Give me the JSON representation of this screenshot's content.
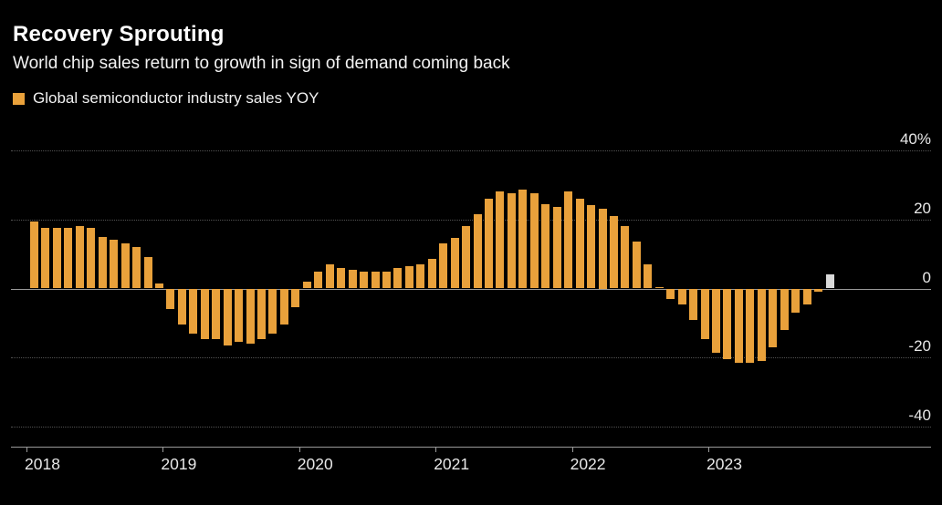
{
  "header": {
    "title": "Recovery Sprouting",
    "subtitle": "World chip sales return to growth in sign of demand coming back",
    "legend": {
      "label": "Global semiconductor industry sales YOY",
      "swatch_color": "#E9A13B"
    }
  },
  "colors": {
    "background": "#000000",
    "bar": "#E9A13B",
    "bar_highlight": "#D9D9D9",
    "grid_dotted": "#525252",
    "zero_line": "#9A9A9A",
    "axis_line": "#9A9A9A",
    "text": "#FFFFFF"
  },
  "chart_data": {
    "type": "bar",
    "title": "Recovery Sprouting",
    "subtitle": "World chip sales return to growth in sign of demand coming back",
    "series_name": "Global semiconductor industry sales YOY",
    "unit": "%",
    "frequency": "monthly",
    "x_start": "2018-01",
    "x_end": "2023-11",
    "year_labels": [
      "2018",
      "2019",
      "2020",
      "2021",
      "2022",
      "2023"
    ],
    "values": [
      19.5,
      17.5,
      17.5,
      17.5,
      18,
      17.5,
      15,
      14,
      13,
      12,
      9,
      1.5,
      -6,
      -10.5,
      -13,
      -14.5,
      -14.5,
      -16.5,
      -15.5,
      -16,
      -14.5,
      -13,
      -10.5,
      -5.5,
      2,
      5,
      7,
      6,
      5.5,
      5,
      5,
      5,
      6,
      6.5,
      7,
      8.5,
      13,
      14.5,
      18,
      21.5,
      26,
      28,
      27.5,
      28.5,
      27.5,
      24.5,
      23.5,
      28,
      26,
      24,
      23,
      21,
      18,
      13.5,
      7,
      0.5,
      -3,
      -4.5,
      -9,
      -14.5,
      -18.5,
      -20.5,
      -21.5,
      -21.5,
      -21,
      -17,
      -12,
      -7,
      -4.5,
      -1,
      4
    ],
    "highlight_last": true,
    "highlight_note": "latest month shown in gray/white",
    "y_axis_ticks": [
      {
        "value": 40,
        "label": "40%"
      },
      {
        "value": 20,
        "label": "20"
      },
      {
        "value": 0,
        "label": "0"
      },
      {
        "value": -20,
        "label": "-20"
      },
      {
        "value": -40,
        "label": "-40"
      }
    ],
    "ylim": [
      46,
      -46
    ],
    "grid": "dotted horizontal",
    "legend_position": "top-left",
    "y_axis_position": "right"
  }
}
